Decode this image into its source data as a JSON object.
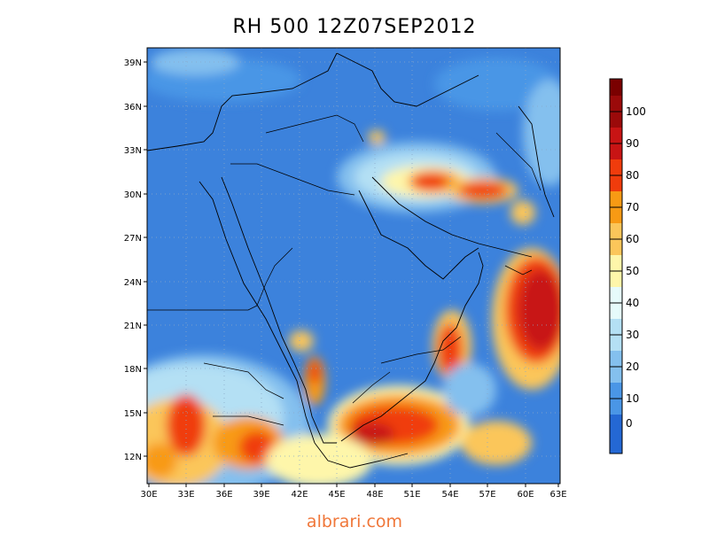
{
  "title": "RH 500 12Z07SEP2012",
  "watermark": "albrari.com",
  "map": {
    "lon_ticks": [
      "30E",
      "33E",
      "36E",
      "39E",
      "42E",
      "45E",
      "48E",
      "51E",
      "54E",
      "57E",
      "60E",
      "63E"
    ],
    "lat_ticks": [
      "39N",
      "36N",
      "33N",
      "30N",
      "27N",
      "24N",
      "21N",
      "18N",
      "15N",
      "12N"
    ]
  },
  "colorbar": {
    "labels": [
      "100",
      "90",
      "80",
      "70",
      "60",
      "50",
      "40",
      "30",
      "20",
      "10",
      "0"
    ],
    "colors": [
      "#9b0a0a",
      "#c81414",
      "#f03c0c",
      "#f89a14",
      "#fbc65a",
      "#fef6aa",
      "#e6fbfb",
      "#b4e0f4",
      "#84c0ee",
      "#4a96e6",
      "#2468d4"
    ],
    "frame_top_color": "#7a0000",
    "frame_bottom_color": "#1e50b4"
  },
  "colors": {
    "background_rh": "#3c82dc"
  }
}
